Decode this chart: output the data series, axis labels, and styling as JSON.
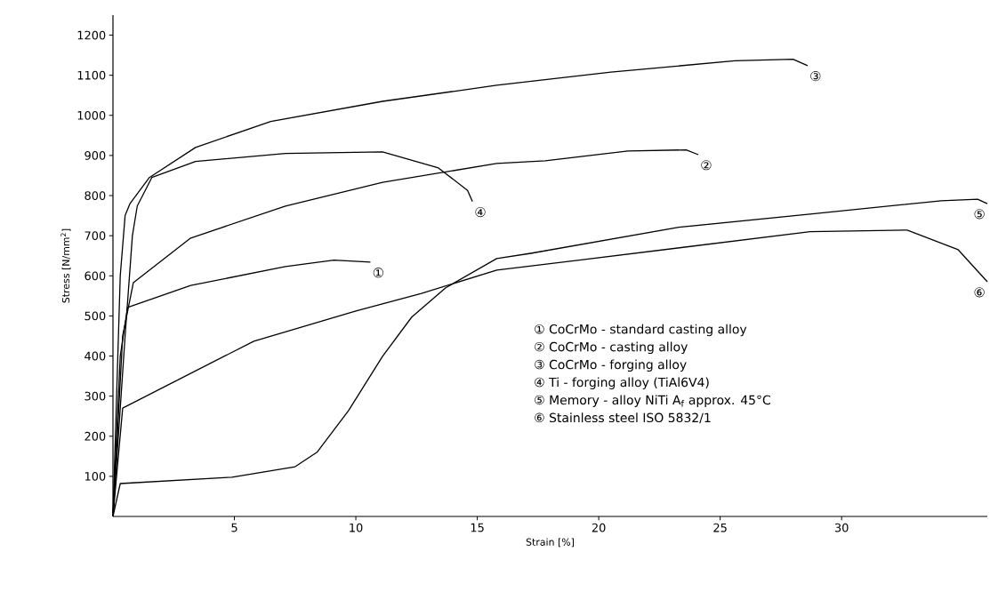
{
  "chart_data": {
    "type": "line",
    "xlabel": "Strain [%]",
    "ylabel": "Stress [N/mm$^{2}$]",
    "xlim": [
      0,
      36
    ],
    "ylim": [
      0,
      1250
    ],
    "xticks": [
      5,
      10,
      15,
      20,
      25,
      30
    ],
    "yticks": [
      100,
      200,
      300,
      400,
      500,
      600,
      700,
      800,
      900,
      1000,
      1100,
      1200
    ],
    "grid": false,
    "line_style": "solid",
    "series": [
      {
        "name": "①",
        "color": "#000000",
        "x": [
          0,
          0.3,
          0.6,
          3.2,
          7.1,
          9.1,
          10.6
        ],
        "values": [
          0,
          400,
          521,
          576,
          623,
          639,
          634
        ]
      },
      {
        "name": "②",
        "color": "#000000",
        "x": [
          0,
          0.4,
          0.84,
          3.2,
          7.1,
          11.1,
          15.8,
          17.8,
          21.2,
          23.6,
          24.1
        ],
        "values": [
          0,
          450,
          583,
          694,
          774,
          833,
          880,
          887,
          911,
          914,
          902
        ]
      },
      {
        "name": "③",
        "color": "#000000",
        "x": [
          0,
          0.3,
          0.5,
          0.7,
          1.5,
          3.4,
          6.5,
          11.1,
          15.8,
          20.5,
          25.6,
          28.0,
          28.6
        ],
        "values": [
          0,
          600,
          750,
          780,
          845,
          920,
          985,
          1035,
          1075,
          1108,
          1136,
          1140,
          1124
        ]
      },
      {
        "name": "④",
        "color": "#000000",
        "x": [
          0,
          0.5,
          0.8,
          1.0,
          1.6,
          3.4,
          7.1,
          11.1,
          13.4,
          14.6,
          14.8
        ],
        "values": [
          0,
          450,
          700,
          774,
          845,
          885,
          905,
          909,
          869,
          813,
          785
        ]
      },
      {
        "name": "⑤",
        "color": "#000000",
        "x": [
          0,
          0.3,
          4.9,
          7.5,
          8.4,
          9.7,
          11.1,
          12.3,
          13.7,
          15.8,
          17.2,
          23.3,
          28.7,
          34.1,
          35.6,
          36.0
        ],
        "values": [
          0,
          82,
          98,
          124,
          160,
          264,
          399,
          497,
          570,
          643,
          656,
          721,
          754,
          787,
          791,
          780
        ]
      },
      {
        "name": "⑥",
        "color": "#000000",
        "x": [
          0,
          0.4,
          5.8,
          10.0,
          12.7,
          15.8,
          19.2,
          28.7,
          32.7,
          34.8,
          36.0
        ],
        "values": [
          0,
          270,
          437,
          512,
          556,
          614,
          639,
          710,
          714,
          665,
          585
        ]
      }
    ],
    "annotations": [
      "① CoCrMo - standard casting alloy",
      "② CoCrMo - casting alloy",
      "③ CoCrMo - forging alloy",
      "④ Ti - forging alloy (TiAl6V4)",
      "⑤ Memory - alloy NiTi A$_{f}$ approx. 45°C",
      "⑥ Stainless steel ISO 5832/1"
    ]
  }
}
